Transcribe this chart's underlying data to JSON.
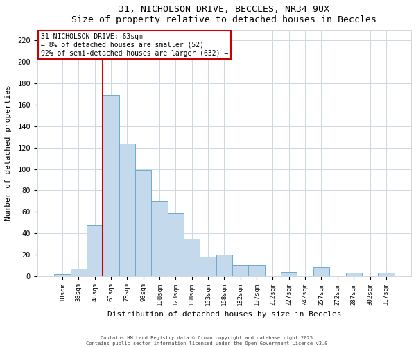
{
  "title": "31, NICHOLSON DRIVE, BECCLES, NR34 9UX",
  "subtitle": "Size of property relative to detached houses in Beccles",
  "xlabel": "Distribution of detached houses by size in Beccles",
  "ylabel": "Number of detached properties",
  "bar_labels": [
    "18sqm",
    "33sqm",
    "48sqm",
    "63sqm",
    "78sqm",
    "93sqm",
    "108sqm",
    "123sqm",
    "138sqm",
    "153sqm",
    "168sqm",
    "182sqm",
    "197sqm",
    "212sqm",
    "227sqm",
    "242sqm",
    "257sqm",
    "272sqm",
    "287sqm",
    "302sqm",
    "317sqm"
  ],
  "bar_values": [
    2,
    7,
    48,
    169,
    124,
    99,
    70,
    59,
    35,
    18,
    20,
    10,
    10,
    0,
    4,
    0,
    8,
    0,
    3,
    0,
    3
  ],
  "bar_color": "#c5d9ed",
  "bar_edge_color": "#6aaad4",
  "red_line_index": 3,
  "annotation_title": "31 NICHOLSON DRIVE: 63sqm",
  "annotation_line1": "← 8% of detached houses are smaller (52)",
  "annotation_line2": "92% of semi-detached houses are larger (632) →",
  "vline_color": "#cc0000",
  "ylim": [
    0,
    230
  ],
  "yticks": [
    0,
    20,
    40,
    60,
    80,
    100,
    120,
    140,
    160,
    180,
    200,
    220
  ],
  "footer1": "Contains HM Land Registry data © Crown copyright and database right 2025.",
  "footer2": "Contains public sector information licensed under the Open Government Licence v3.0.",
  "bg_color": "#ffffff",
  "plot_bg_color": "#ffffff",
  "grid_color": "#d0d8e0",
  "annotation_box_facecolor": "#ffffff",
  "annotation_box_edgecolor": "#cc0000"
}
